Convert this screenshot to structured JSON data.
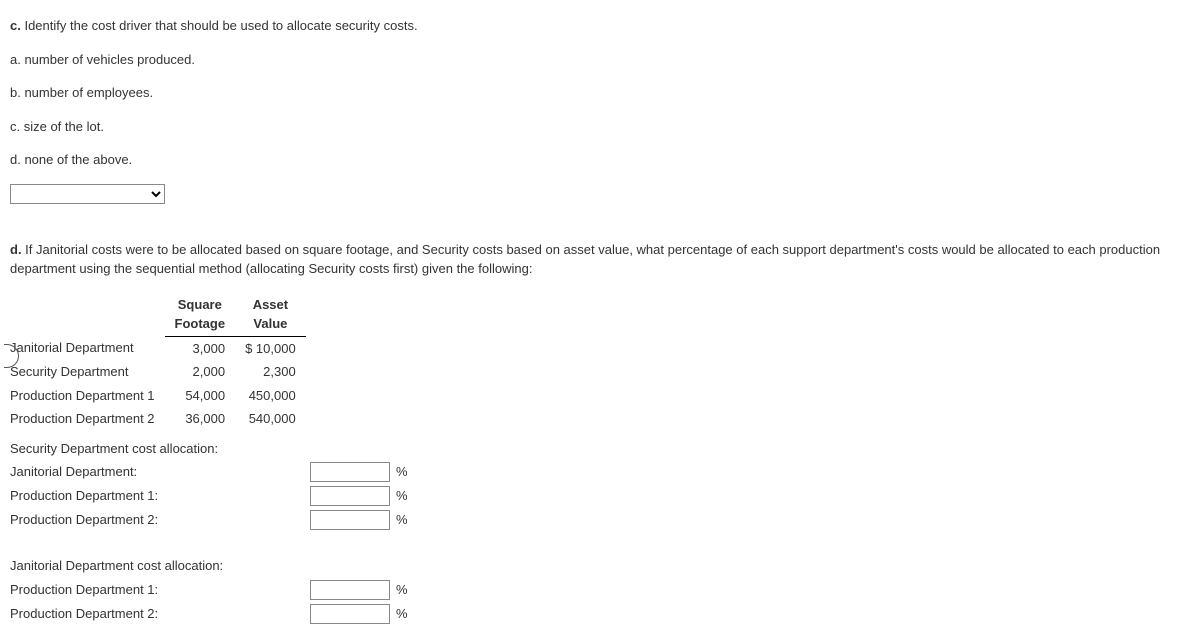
{
  "questionC": {
    "prompt_prefix": "c.",
    "prompt_text": " Identify the cost driver that should be used to allocate security costs.",
    "options": {
      "a": "a. number of vehicles produced.",
      "b": "b. number of employees.",
      "c": "c. size of the lot.",
      "d": "d. none of the above."
    }
  },
  "questionD": {
    "prompt_prefix": "d.",
    "prompt_text": " If Janitorial costs were to be allocated based on square footage, and Security costs based on asset value, what percentage of each support department's costs would be allocated to each production department using the sequential method (allocating Security costs first) given the following:"
  },
  "dataTable": {
    "headers": {
      "col1_line1": "Square",
      "col1_line2": "Footage",
      "col2_line1": "Asset",
      "col2_line2": "Value"
    },
    "rows": [
      {
        "label": "Janitorial Department",
        "sqft": "3,000",
        "asset": "$ 10,000"
      },
      {
        "label": "Security Department",
        "sqft": "2,000",
        "asset": "2,300"
      },
      {
        "label": "Production Department 1",
        "sqft": "54,000",
        "asset": "450,000"
      },
      {
        "label": "Production Department 2",
        "sqft": "36,000",
        "asset": "540,000"
      }
    ]
  },
  "securityAlloc": {
    "header": "Security Department cost allocation:",
    "rows": [
      {
        "label": "Janitorial Department:"
      },
      {
        "label": "Production Department 1:"
      },
      {
        "label": "Production Department 2:"
      }
    ]
  },
  "janitorialAlloc": {
    "header": "Janitorial Department cost allocation:",
    "rows": [
      {
        "label": "Production Department 1:"
      },
      {
        "label": "Production Department 2:"
      }
    ]
  },
  "pctSign": "%"
}
